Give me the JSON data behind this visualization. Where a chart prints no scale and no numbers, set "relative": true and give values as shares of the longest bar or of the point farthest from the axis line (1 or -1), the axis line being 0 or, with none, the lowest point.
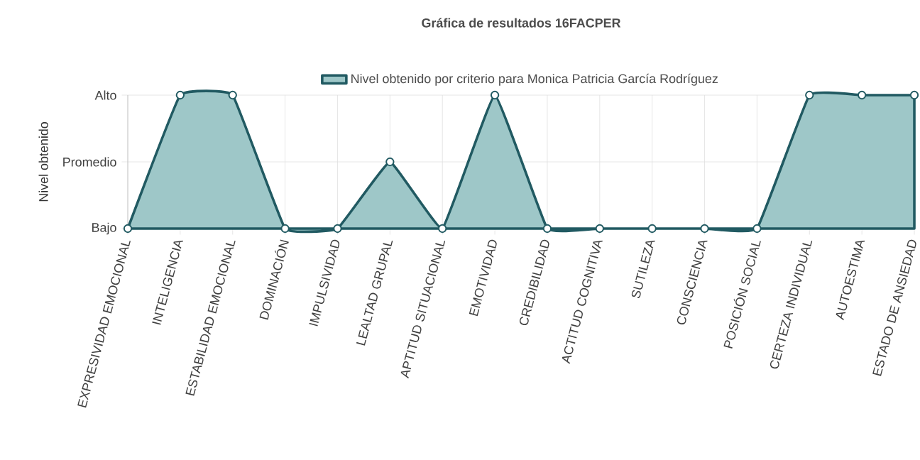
{
  "chart_data": {
    "type": "area",
    "title": "Gráfica de resultados 16FACPER",
    "ylabel": "Nivel obtenido",
    "categories": [
      "EXPRESIVIDAD EMOCIONAL",
      "INTELIGENCIA",
      "ESTABILIDAD EMOCIONAL",
      "DOMINACIÓN",
      "IMPULSIVIDAD",
      "LEALTAD GRUPAL",
      "APTITUD SITUACIONAL",
      "EMOTIVIDAD",
      "CREDIBILIDAD",
      "ACTITUD COGNITIVA",
      "SUTILEZA",
      "CONSCIENCIA",
      "POSICIÓN SOCIAL",
      "CERTEZA INDIVIDUAL",
      "AUTOESTIMA",
      "ESTADO DE ANSIEDAD"
    ],
    "series": [
      {
        "name": "Nivel obtenido por criterio para Monica Patricia García Rodríguez",
        "color": "#215a62",
        "values": [
          0,
          1,
          1,
          0,
          0,
          0.5,
          0,
          1,
          0,
          0,
          0,
          0,
          0,
          1,
          1,
          1
        ]
      }
    ],
    "relative": true,
    "annotations": [
      "Bajo",
      "Promedio",
      "Alto"
    ],
    "grid": true,
    "legend": "top",
    "marker": "circle",
    "line_style": "solid"
  }
}
